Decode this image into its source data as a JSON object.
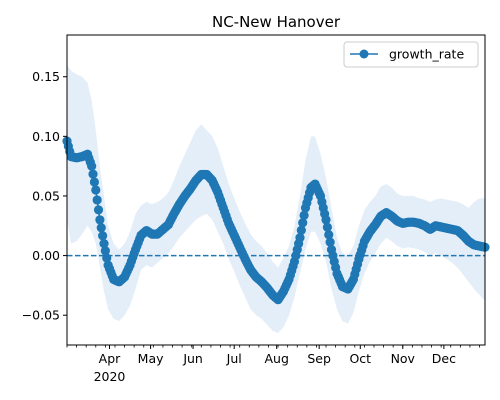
{
  "chart_data": {
    "type": "line",
    "title": "NC-New Hanover",
    "xlabel": "",
    "ylabel": "",
    "x_axis": {
      "start": "2020-03-01",
      "end": "2020-12-31",
      "ticks": [
        {
          "date": "2020-04-01",
          "label": "Apr",
          "year_label": "2020"
        },
        {
          "date": "2020-05-01",
          "label": "May"
        },
        {
          "date": "2020-06-01",
          "label": "Jun"
        },
        {
          "date": "2020-07-01",
          "label": "Jul"
        },
        {
          "date": "2020-08-01",
          "label": "Aug"
        },
        {
          "date": "2020-09-01",
          "label": "Sep"
        },
        {
          "date": "2020-10-01",
          "label": "Oct"
        },
        {
          "date": "2020-11-01",
          "label": "Nov"
        },
        {
          "date": "2020-12-01",
          "label": "Dec"
        }
      ]
    },
    "ylim": [
      -0.075,
      0.185
    ],
    "yticks": [
      {
        "value": -0.05,
        "label": "−0.05"
      },
      {
        "value": 0.0,
        "label": "0.00"
      },
      {
        "value": 0.05,
        "label": "0.05"
      },
      {
        "value": 0.1,
        "label": "0.10"
      },
      {
        "value": 0.15,
        "label": "0.15"
      }
    ],
    "reference_line": {
      "y": 0.0,
      "style": "dashed",
      "color": "#1f77b4"
    },
    "legend": {
      "placement": "top-right",
      "entries": [
        "growth_rate"
      ]
    },
    "grid": false,
    "colors": {
      "series": "#1f77b4",
      "band": "#dbe8f5"
    },
    "series": [
      {
        "name": "growth_rate",
        "marker": "circle",
        "points": [
          {
            "date": "2020-03-01",
            "y": 0.096,
            "lower": 0.03,
            "upper": 0.16
          },
          {
            "date": "2020-03-04",
            "y": 0.083,
            "lower": 0.01,
            "upper": 0.155
          },
          {
            "date": "2020-03-08",
            "y": 0.082,
            "lower": 0.012,
            "upper": 0.152
          },
          {
            "date": "2020-03-12",
            "y": 0.083,
            "lower": 0.018,
            "upper": 0.15
          },
          {
            "date": "2020-03-16",
            "y": 0.085,
            "lower": 0.025,
            "upper": 0.145
          },
          {
            "date": "2020-03-19",
            "y": 0.075,
            "lower": 0.02,
            "upper": 0.13
          },
          {
            "date": "2020-03-22",
            "y": 0.055,
            "lower": 0.01,
            "upper": 0.105
          },
          {
            "date": "2020-03-25",
            "y": 0.03,
            "lower": -0.01,
            "upper": 0.075
          },
          {
            "date": "2020-03-28",
            "y": 0.01,
            "lower": -0.03,
            "upper": 0.05
          },
          {
            "date": "2020-03-31",
            "y": -0.008,
            "lower": -0.045,
            "upper": 0.025
          },
          {
            "date": "2020-04-04",
            "y": -0.02,
            "lower": -0.053,
            "upper": 0.01
          },
          {
            "date": "2020-04-08",
            "y": -0.022,
            "lower": -0.055,
            "upper": 0.005
          },
          {
            "date": "2020-04-12",
            "y": -0.018,
            "lower": -0.05,
            "upper": 0.01
          },
          {
            "date": "2020-04-16",
            "y": -0.008,
            "lower": -0.042,
            "upper": 0.02
          },
          {
            "date": "2020-04-20",
            "y": 0.005,
            "lower": -0.028,
            "upper": 0.035
          },
          {
            "date": "2020-04-24",
            "y": 0.017,
            "lower": -0.012,
            "upper": 0.042
          },
          {
            "date": "2020-04-28",
            "y": 0.021,
            "lower": -0.008,
            "upper": 0.045
          },
          {
            "date": "2020-05-02",
            "y": 0.018,
            "lower": -0.01,
            "upper": 0.043
          },
          {
            "date": "2020-05-06",
            "y": 0.018,
            "lower": -0.006,
            "upper": 0.045
          },
          {
            "date": "2020-05-10",
            "y": 0.022,
            "lower": -0.002,
            "upper": 0.048
          },
          {
            "date": "2020-05-14",
            "y": 0.026,
            "lower": 0.002,
            "upper": 0.053
          },
          {
            "date": "2020-05-18",
            "y": 0.035,
            "lower": 0.008,
            "upper": 0.063
          },
          {
            "date": "2020-05-22",
            "y": 0.043,
            "lower": 0.015,
            "upper": 0.075
          },
          {
            "date": "2020-05-26",
            "y": 0.05,
            "lower": 0.02,
            "upper": 0.085
          },
          {
            "date": "2020-05-30",
            "y": 0.056,
            "lower": 0.025,
            "upper": 0.095
          },
          {
            "date": "2020-06-03",
            "y": 0.063,
            "lower": 0.03,
            "upper": 0.105
          },
          {
            "date": "2020-06-07",
            "y": 0.068,
            "lower": 0.033,
            "upper": 0.11
          },
          {
            "date": "2020-06-11",
            "y": 0.068,
            "lower": 0.035,
            "upper": 0.105
          },
          {
            "date": "2020-06-15",
            "y": 0.063,
            "lower": 0.03,
            "upper": 0.1
          },
          {
            "date": "2020-06-19",
            "y": 0.053,
            "lower": 0.02,
            "upper": 0.09
          },
          {
            "date": "2020-06-23",
            "y": 0.04,
            "lower": 0.01,
            "upper": 0.075
          },
          {
            "date": "2020-06-27",
            "y": 0.027,
            "lower": -0.003,
            "upper": 0.06
          },
          {
            "date": "2020-07-01",
            "y": 0.017,
            "lower": -0.013,
            "upper": 0.048
          },
          {
            "date": "2020-07-05",
            "y": 0.007,
            "lower": -0.025,
            "upper": 0.037
          },
          {
            "date": "2020-07-09",
            "y": -0.003,
            "lower": -0.035,
            "upper": 0.027
          },
          {
            "date": "2020-07-13",
            "y": -0.012,
            "lower": -0.045,
            "upper": 0.018
          },
          {
            "date": "2020-07-17",
            "y": -0.018,
            "lower": -0.05,
            "upper": 0.012
          },
          {
            "date": "2020-07-21",
            "y": -0.022,
            "lower": -0.053,
            "upper": 0.008
          },
          {
            "date": "2020-07-25",
            "y": -0.027,
            "lower": -0.058,
            "upper": 0.002
          },
          {
            "date": "2020-07-29",
            "y": -0.033,
            "lower": -0.063,
            "upper": -0.005
          },
          {
            "date": "2020-08-02",
            "y": -0.037,
            "lower": -0.065,
            "upper": -0.01
          },
          {
            "date": "2020-08-06",
            "y": -0.03,
            "lower": -0.06,
            "upper": -0.002
          },
          {
            "date": "2020-08-10",
            "y": -0.02,
            "lower": -0.05,
            "upper": 0.008
          },
          {
            "date": "2020-08-14",
            "y": -0.005,
            "lower": -0.035,
            "upper": 0.025
          },
          {
            "date": "2020-08-18",
            "y": 0.015,
            "lower": -0.015,
            "upper": 0.05
          },
          {
            "date": "2020-08-22",
            "y": 0.04,
            "lower": 0.005,
            "upper": 0.08
          },
          {
            "date": "2020-08-26",
            "y": 0.057,
            "lower": 0.02,
            "upper": 0.1
          },
          {
            "date": "2020-08-29",
            "y": 0.06,
            "lower": 0.02,
            "upper": 0.1
          },
          {
            "date": "2020-09-02",
            "y": 0.05,
            "lower": 0.01,
            "upper": 0.085
          },
          {
            "date": "2020-09-06",
            "y": 0.03,
            "lower": -0.005,
            "upper": 0.065
          },
          {
            "date": "2020-09-10",
            "y": 0.005,
            "lower": -0.028,
            "upper": 0.04
          },
          {
            "date": "2020-09-14",
            "y": -0.015,
            "lower": -0.045,
            "upper": 0.015
          },
          {
            "date": "2020-09-18",
            "y": -0.026,
            "lower": -0.055,
            "upper": 0.002
          },
          {
            "date": "2020-09-22",
            "y": -0.028,
            "lower": -0.057,
            "upper": 0.0
          },
          {
            "date": "2020-09-26",
            "y": -0.02,
            "lower": -0.048,
            "upper": 0.008
          },
          {
            "date": "2020-09-30",
            "y": -0.003,
            "lower": -0.03,
            "upper": 0.025
          },
          {
            "date": "2020-10-04",
            "y": 0.012,
            "lower": -0.015,
            "upper": 0.038
          },
          {
            "date": "2020-10-08",
            "y": 0.02,
            "lower": -0.005,
            "upper": 0.045
          },
          {
            "date": "2020-10-12",
            "y": 0.026,
            "lower": 0.002,
            "upper": 0.05
          },
          {
            "date": "2020-10-16",
            "y": 0.033,
            "lower": 0.01,
            "upper": 0.058
          },
          {
            "date": "2020-10-20",
            "y": 0.036,
            "lower": 0.015,
            "upper": 0.06
          },
          {
            "date": "2020-10-24",
            "y": 0.033,
            "lower": 0.012,
            "upper": 0.057
          },
          {
            "date": "2020-10-28",
            "y": 0.029,
            "lower": 0.008,
            "upper": 0.052
          },
          {
            "date": "2020-11-01",
            "y": 0.027,
            "lower": 0.006,
            "upper": 0.05
          },
          {
            "date": "2020-11-05",
            "y": 0.028,
            "lower": 0.007,
            "upper": 0.05
          },
          {
            "date": "2020-11-09",
            "y": 0.028,
            "lower": 0.006,
            "upper": 0.05
          },
          {
            "date": "2020-11-13",
            "y": 0.027,
            "lower": 0.005,
            "upper": 0.048
          },
          {
            "date": "2020-11-17",
            "y": 0.025,
            "lower": 0.003,
            "upper": 0.047
          },
          {
            "date": "2020-11-21",
            "y": 0.022,
            "lower": 0.0,
            "upper": 0.045
          },
          {
            "date": "2020-11-25",
            "y": 0.025,
            "lower": 0.002,
            "upper": 0.047
          },
          {
            "date": "2020-11-29",
            "y": 0.024,
            "lower": 0.0,
            "upper": 0.048
          },
          {
            "date": "2020-12-03",
            "y": 0.023,
            "lower": -0.003,
            "upper": 0.047
          },
          {
            "date": "2020-12-07",
            "y": 0.022,
            "lower": -0.006,
            "upper": 0.046
          },
          {
            "date": "2020-12-11",
            "y": 0.021,
            "lower": -0.01,
            "upper": 0.045
          },
          {
            "date": "2020-12-15",
            "y": 0.017,
            "lower": -0.016,
            "upper": 0.043
          },
          {
            "date": "2020-12-19",
            "y": 0.012,
            "lower": -0.022,
            "upper": 0.04
          },
          {
            "date": "2020-12-23",
            "y": 0.009,
            "lower": -0.028,
            "upper": 0.045
          },
          {
            "date": "2020-12-27",
            "y": 0.008,
            "lower": -0.033,
            "upper": 0.048
          },
          {
            "date": "2020-12-31",
            "y": 0.007,
            "lower": -0.038,
            "upper": 0.048
          }
        ]
      }
    ]
  }
}
